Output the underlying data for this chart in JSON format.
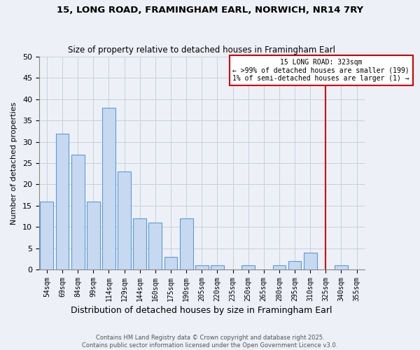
{
  "title": "15, LONG ROAD, FRAMINGHAM EARL, NORWICH, NR14 7RY",
  "subtitle": "Size of property relative to detached houses in Framingham Earl",
  "xlabel": "Distribution of detached houses by size in Framingham Earl",
  "ylabel": "Number of detached properties",
  "bar_labels": [
    "54sqm",
    "69sqm",
    "84sqm",
    "99sqm",
    "114sqm",
    "129sqm",
    "144sqm",
    "160sqm",
    "175sqm",
    "190sqm",
    "205sqm",
    "220sqm",
    "235sqm",
    "250sqm",
    "265sqm",
    "280sqm",
    "295sqm",
    "310sqm",
    "325sqm",
    "340sqm",
    "355sqm"
  ],
  "bar_values": [
    16,
    32,
    27,
    16,
    38,
    23,
    12,
    11,
    3,
    12,
    1,
    1,
    0,
    1,
    0,
    1,
    2,
    4,
    0,
    1,
    0
  ],
  "bar_color": "#c6d9f1",
  "bar_edge_color": "#5b9bd5",
  "vline_x_index": 18,
  "annotation_box_title": "15 LONG ROAD: 323sqm",
  "annotation_line1": "← >99% of detached houses are smaller (199)",
  "annotation_line2": "1% of semi-detached houses are larger (1) →",
  "annotation_box_color": "#ffffff",
  "annotation_box_edge_color": "#cc0000",
  "vline_color": "#cc0000",
  "ylim": [
    0,
    50
  ],
  "yticks": [
    0,
    5,
    10,
    15,
    20,
    25,
    30,
    35,
    40,
    45,
    50
  ],
  "grid_color": "#c8d0dc",
  "footer1": "Contains HM Land Registry data © Crown copyright and database right 2025.",
  "footer2": "Contains public sector information licensed under the Open Government Licence v3.0.",
  "bg_color": "#eef0f8",
  "plot_bg_color": "#eef0f8"
}
